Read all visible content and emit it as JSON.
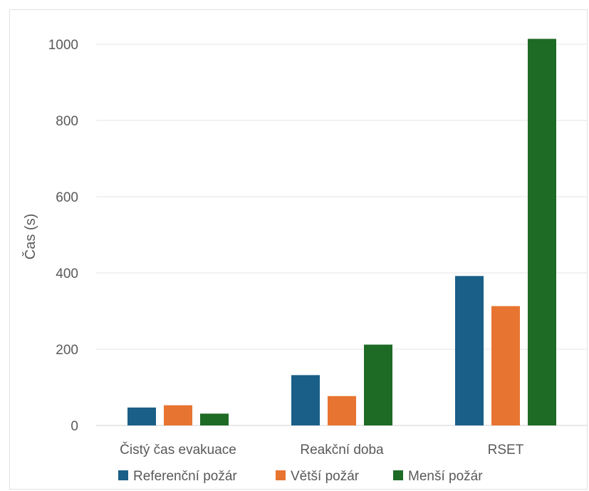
{
  "chart_data": {
    "type": "bar",
    "title": "",
    "xlabel": "",
    "ylabel": "Čas (s)",
    "ylim": [
      0,
      1000
    ],
    "yticks": [
      0,
      200,
      400,
      600,
      800,
      1000
    ],
    "grid": true,
    "legend_position": "bottom",
    "categories": [
      "Čistý čas evakuace",
      "Reakční doba",
      "RSET"
    ],
    "series": [
      {
        "name": "Referenční požár",
        "color": "#1a5f87",
        "values": [
          47,
          132,
          392
        ]
      },
      {
        "name": "Větší požár",
        "color": "#e87431",
        "values": [
          53,
          77,
          313
        ]
      },
      {
        "name": "Menší požár",
        "color": "#1e6b25",
        "values": [
          31,
          212,
          1014
        ]
      }
    ]
  }
}
